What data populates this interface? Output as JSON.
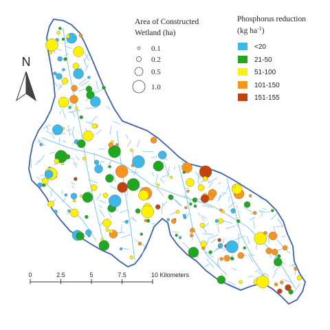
{
  "north_arrow": {
    "label": "N"
  },
  "size_legend": {
    "title_lines": [
      "Area of Constructed",
      "Wetland (ha)"
    ],
    "items": [
      {
        "label": "0.1",
        "value": 0.1
      },
      {
        "label": "0.2",
        "value": 0.2
      },
      {
        "label": "0.5",
        "value": 0.5
      },
      {
        "label": "1.0",
        "value": 1.0
      }
    ]
  },
  "color_legend": {
    "title_line1": "Phosphorus reduction",
    "title_line2_prefix": "(kg ha",
    "title_line2_sup": "-1",
    "title_line2_suffix": ")",
    "items": [
      {
        "label": "<20",
        "color": "#3db7e8"
      },
      {
        "label": "21-50",
        "color": "#1fa81f"
      },
      {
        "label": "51-100",
        "color": "#fff200"
      },
      {
        "label": "101-150",
        "color": "#f7941d"
      },
      {
        "label": "151-155",
        "color": "#c1440e"
      }
    ]
  },
  "scale_bar": {
    "labels": [
      "0",
      "2.5",
      "5",
      "7.5",
      "10 Kilometers"
    ],
    "values": [
      0,
      2.5,
      5,
      7.5,
      10
    ]
  },
  "colors": {
    "boundary": "#3b5fa8",
    "streams": "#7fc4e8"
  }
}
